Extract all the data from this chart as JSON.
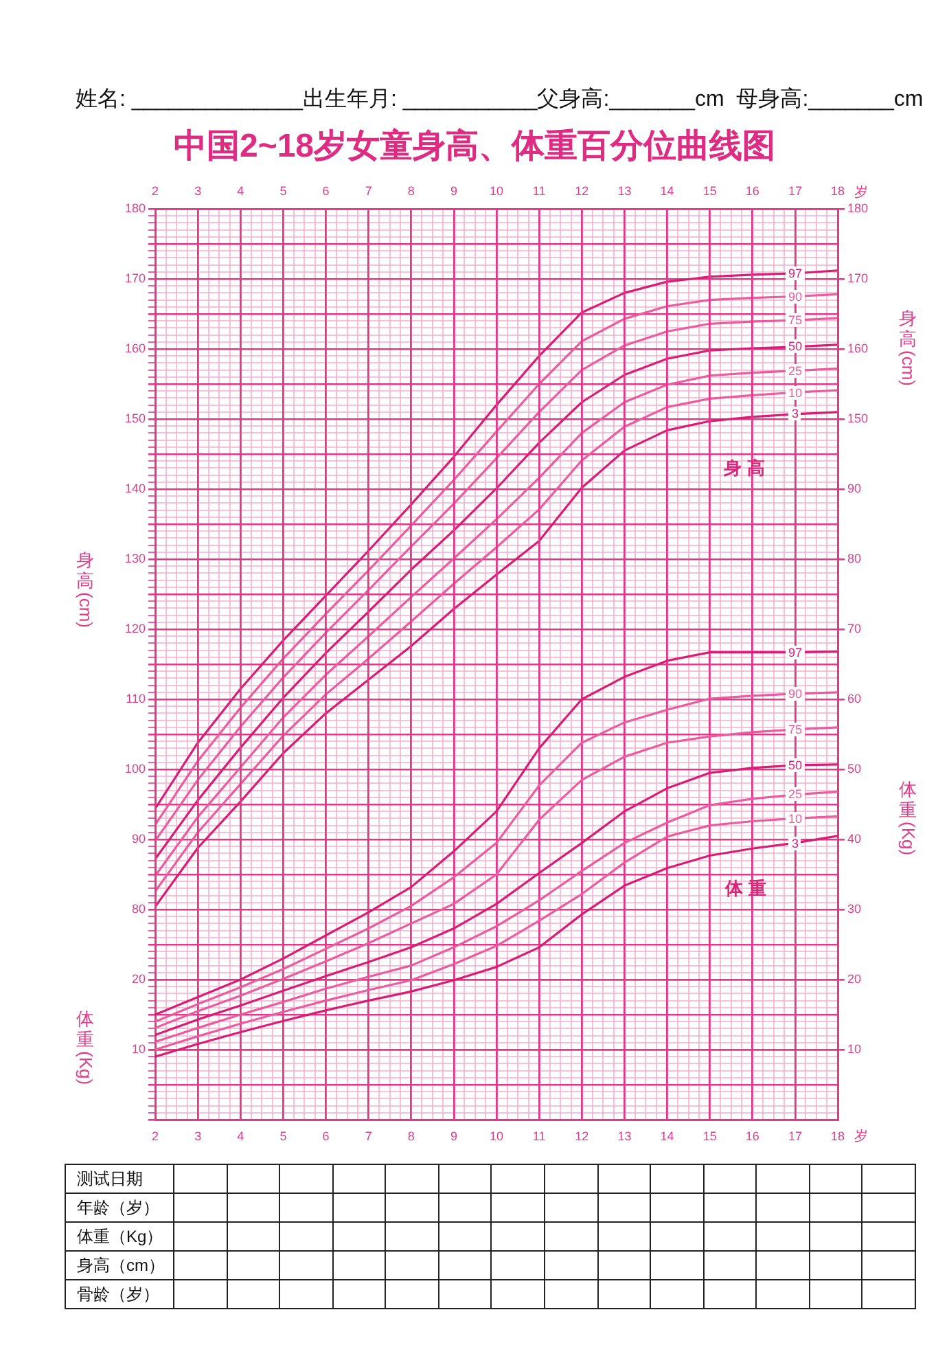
{
  "chart_data": [
    {
      "type": "line",
      "title": "中国2~18岁女童身高、体重百分位曲线图",
      "xlabel": "岁",
      "x2label": "岁",
      "ylabel": "身高(cm)",
      "y2label": "身高(cm)",
      "annotations": [
        "姓名: ______________出生年月: ___________父身高:_______cm  母身高:_______cm",
        "身高"
      ],
      "x": [
        2,
        3,
        4,
        5,
        6,
        7,
        8,
        9,
        10,
        11,
        12,
        13,
        14,
        15,
        16,
        17,
        18
      ],
      "xlim": [
        2,
        18
      ],
      "xticks": [
        2,
        {
          "value": 2.25,
          "label": null
        },
        {
          "value": 2.5,
          "label": null
        },
        {
          "value": 2.75,
          "label": null
        },
        3,
        {
          "value": 3.25,
          "label": null
        },
        {
          "value": 3.5,
          "label": null
        },
        {
          "value": 3.75,
          "label": null
        },
        4,
        {
          "value": 4.25,
          "label": null
        },
        {
          "value": 4.5,
          "label": null
        },
        {
          "value": 4.75,
          "label": null
        },
        5,
        {
          "value": 5.25,
          "label": null
        },
        {
          "value": 5.5,
          "label": null
        },
        {
          "value": 5.75,
          "label": null
        },
        6,
        {
          "value": 6.25,
          "label": null
        },
        {
          "value": 6.5,
          "label": null
        },
        {
          "value": 6.75,
          "label": null
        },
        7,
        {
          "value": 7.25,
          "label": null
        },
        {
          "value": 7.5,
          "label": null
        },
        {
          "value": 7.75,
          "label": null
        },
        8,
        {
          "value": 8.25,
          "label": null
        },
        {
          "value": 8.5,
          "label": null
        },
        {
          "value": 8.75,
          "label": null
        },
        9,
        {
          "value": 9.25,
          "label": null
        },
        {
          "value": 9.5,
          "label": null
        },
        {
          "value": 9.75,
          "label": null
        },
        10,
        {
          "value": 10.25,
          "label": null
        },
        {
          "value": 10.5,
          "label": null
        },
        {
          "value": 10.75,
          "label": null
        },
        11,
        {
          "value": 11.25,
          "label": null
        },
        {
          "value": 11.5,
          "label": null
        },
        {
          "value": 11.75,
          "label": null
        },
        12,
        {
          "value": 12.25,
          "label": null
        },
        {
          "value": 12.5,
          "label": null
        },
        {
          "value": 12.75,
          "label": null
        },
        13,
        {
          "value": 13.25,
          "label": null
        },
        {
          "value": 13.5,
          "label": null
        },
        {
          "value": 13.75,
          "label": null
        },
        14,
        {
          "value": 14.25,
          "label": null
        },
        {
          "value": 14.5,
          "label": null
        },
        {
          "value": 14.75,
          "label": null
        },
        15,
        {
          "value": 15.25,
          "label": null
        },
        {
          "value": 15.5,
          "label": null
        },
        {
          "value": 15.75,
          "label": null
        },
        16,
        {
          "value": 16.25,
          "label": null
        },
        {
          "value": 16.5,
          "label": null
        },
        {
          "value": 16.75,
          "label": null
        },
        17,
        {
          "value": 17.25,
          "label": null
        },
        {
          "value": 17.5,
          "label": null
        },
        {
          "value": 17.75,
          "label": null
        },
        18
      ],
      "x2lim": [
        2,
        18
      ],
      "x2ticks": [
        2,
        3,
        4,
        5,
        6,
        7,
        8,
        9,
        10,
        11,
        12,
        13,
        14,
        15,
        16,
        17,
        18
      ],
      "ylim": [
        50,
        180
      ],
      "yticks": [
        {
          "value": 50,
          "label": null
        },
        {
          "value": 51,
          "label": null
        },
        {
          "value": 52,
          "label": null
        },
        {
          "value": 53,
          "label": null
        },
        {
          "value": 54,
          "label": null
        },
        {
          "value": 55,
          "label": null
        },
        {
          "value": 56,
          "label": null
        },
        {
          "value": 57,
          "label": null
        },
        {
          "value": 58,
          "label": null
        },
        {
          "value": 59,
          "label": null
        },
        {
          "value": 60,
          "label": null
        },
        {
          "value": 61,
          "label": null
        },
        {
          "value": 62,
          "label": null
        },
        {
          "value": 63,
          "label": null
        },
        {
          "value": 64,
          "label": null
        },
        {
          "value": 65,
          "label": null
        },
        {
          "value": 66,
          "label": null
        },
        {
          "value": 67,
          "label": null
        },
        {
          "value": 68,
          "label": null
        },
        {
          "value": 69,
          "label": null
        },
        {
          "value": 70,
          "label": null
        },
        {
          "value": 71,
          "label": null
        },
        {
          "value": 72,
          "label": null
        },
        {
          "value": 73,
          "label": null
        },
        {
          "value": 74,
          "label": null
        },
        {
          "value": 75,
          "label": null
        },
        {
          "value": 76,
          "label": null
        },
        {
          "value": 77,
          "label": null
        },
        {
          "value": 78,
          "label": null
        },
        {
          "value": 79,
          "label": null
        },
        80,
        {
          "value": 81,
          "label": null
        },
        {
          "value": 82,
          "label": null
        },
        {
          "value": 83,
          "label": null
        },
        {
          "value": 84,
          "label": null
        },
        {
          "value": 85,
          "label": null
        },
        {
          "value": 86,
          "label": null
        },
        {
          "value": 87,
          "label": null
        },
        {
          "value": 88,
          "label": null
        },
        {
          "value": 89,
          "label": null
        },
        90,
        {
          "value": 91,
          "label": null
        },
        {
          "value": 92,
          "label": null
        },
        {
          "value": 93,
          "label": null
        },
        {
          "value": 94,
          "label": null
        },
        {
          "value": 95,
          "label": null
        },
        {
          "value": 96,
          "label": null
        },
        {
          "value": 97,
          "label": null
        },
        {
          "value": 98,
          "label": null
        },
        {
          "value": 99,
          "label": null
        },
        100,
        {
          "value": 101,
          "label": null
        },
        {
          "value": 102,
          "label": null
        },
        {
          "value": 103,
          "label": null
        },
        {
          "value": 104,
          "label": null
        },
        {
          "value": 105,
          "label": null
        },
        {
          "value": 106,
          "label": null
        },
        {
          "value": 107,
          "label": null
        },
        {
          "value": 108,
          "label": null
        },
        {
          "value": 109,
          "label": null
        },
        110,
        {
          "value": 111,
          "label": null
        },
        {
          "value": 112,
          "label": null
        },
        {
          "value": 113,
          "label": null
        },
        {
          "value": 114,
          "label": null
        },
        {
          "value": 115,
          "label": null
        },
        {
          "value": 116,
          "label": null
        },
        {
          "value": 117,
          "label": null
        },
        {
          "value": 118,
          "label": null
        },
        {
          "value": 119,
          "label": null
        },
        120,
        {
          "value": 121,
          "label": null
        },
        {
          "value": 122,
          "label": null
        },
        {
          "value": 123,
          "label": null
        },
        {
          "value": 124,
          "label": null
        },
        {
          "value": 125,
          "label": null
        },
        {
          "value": 126,
          "label": null
        },
        {
          "value": 127,
          "label": null
        },
        {
          "value": 128,
          "label": null
        },
        {
          "value": 129,
          "label": null
        },
        130,
        {
          "value": 131,
          "label": null
        },
        {
          "value": 132,
          "label": null
        },
        {
          "value": 133,
          "label": null
        },
        {
          "value": 134,
          "label": null
        },
        {
          "value": 135,
          "label": null
        },
        {
          "value": 136,
          "label": null
        },
        {
          "value": 137,
          "label": null
        },
        {
          "value": 138,
          "label": null
        },
        {
          "value": 139,
          "label": null
        },
        140,
        {
          "value": 141,
          "label": null
        },
        {
          "value": 142,
          "label": null
        },
        {
          "value": 143,
          "label": null
        },
        {
          "value": 144,
          "label": null
        },
        {
          "value": 145,
          "label": null
        },
        {
          "value": 146,
          "label": null
        },
        {
          "value": 147,
          "label": null
        },
        {
          "value": 148,
          "label": null
        },
        {
          "value": 149,
          "label": null
        },
        150,
        {
          "value": 151,
          "label": null
        },
        {
          "value": 152,
          "label": null
        },
        {
          "value": 153,
          "label": null
        },
        {
          "value": 154,
          "label": null
        },
        {
          "value": 155,
          "label": null
        },
        {
          "value": 156,
          "label": null
        },
        {
          "value": 157,
          "label": null
        },
        {
          "value": 158,
          "label": null
        },
        {
          "value": 159,
          "label": null
        },
        160,
        {
          "value": 161,
          "label": null
        },
        {
          "value": 162,
          "label": null
        },
        {
          "value": 163,
          "label": null
        },
        {
          "value": 164,
          "label": null
        },
        {
          "value": 165,
          "label": null
        },
        {
          "value": 166,
          "label": null
        },
        {
          "value": 167,
          "label": null
        },
        {
          "value": 168,
          "label": null
        },
        {
          "value": 169,
          "label": null
        },
        170,
        {
          "value": 171,
          "label": null
        },
        {
          "value": 172,
          "label": null
        },
        {
          "value": 173,
          "label": null
        },
        {
          "value": 174,
          "label": null
        },
        {
          "value": 175,
          "label": null
        },
        {
          "value": 176,
          "label": null
        },
        {
          "value": 177,
          "label": null
        },
        {
          "value": 178,
          "label": null
        },
        {
          "value": 179,
          "label": null
        },
        180
      ],
      "y2lim": [
        50,
        180
      ],
      "y2ticks": [
        150,
        160,
        170,
        180
      ],
      "grid": true,
      "marker": "none",
      "series": [
        {
          "name": "97",
          "color": "#d81e74",
          "values": [
            94.4,
            103.8,
            111.5,
            118.4,
            124.8,
            131.2,
            137.8,
            144.6,
            152.0,
            159.0,
            165.2,
            168.0,
            169.6,
            170.3,
            170.6,
            170.8,
            171.2
          ]
        },
        {
          "name": "90",
          "color": "#ea5c9e",
          "values": [
            92.1,
            101.2,
            108.8,
            115.8,
            122.2,
            128.4,
            134.8,
            141.3,
            148.2,
            155.0,
            161.1,
            164.3,
            166.1,
            167.0,
            167.3,
            167.5,
            167.8
          ]
        },
        {
          "name": "75",
          "color": "#ea5c9e",
          "values": [
            89.8,
            98.5,
            106.1,
            113.1,
            119.5,
            125.6,
            131.8,
            137.9,
            144.4,
            151.0,
            157.0,
            160.5,
            162.5,
            163.6,
            163.9,
            164.1,
            164.4
          ]
        },
        {
          "name": "50",
          "color": "#d81e74",
          "values": [
            87.2,
            95.6,
            103.1,
            110.2,
            116.6,
            122.5,
            128.5,
            134.1,
            140.1,
            146.6,
            152.4,
            156.3,
            158.6,
            159.8,
            160.1,
            160.3,
            160.6
          ]
        },
        {
          "name": "25",
          "color": "#ea5c9e",
          "values": [
            84.8,
            93.2,
            100.3,
            107.4,
            113.5,
            119.0,
            124.6,
            130.1,
            135.7,
            141.6,
            148.0,
            152.4,
            154.9,
            156.2,
            156.6,
            156.9,
            157.2
          ]
        },
        {
          "name": "10",
          "color": "#ea5c9e",
          "values": [
            82.6,
            91.0,
            97.9,
            104.8,
            110.7,
            115.8,
            121.1,
            126.5,
            131.7,
            137.1,
            144.1,
            148.9,
            151.7,
            152.9,
            153.4,
            153.8,
            154.1
          ]
        },
        {
          "name": "3",
          "color": "#d81e74",
          "values": [
            80.4,
            88.8,
            95.4,
            102.3,
            108.0,
            112.8,
            117.6,
            122.9,
            127.8,
            132.6,
            140.2,
            145.5,
            148.4,
            149.7,
            150.3,
            150.7,
            151.0
          ]
        }
      ]
    },
    {
      "type": "line",
      "ylabel": "体重(Kg)",
      "y2label": "体重(Kg)",
      "annotations": [
        "体重",
        "测试日期",
        "年龄（岁）",
        "体重（Kg）",
        "身高（cm）",
        "骨龄（岁）"
      ],
      "x": [
        2,
        3,
        4,
        5,
        6,
        7,
        8,
        9,
        10,
        11,
        12,
        13,
        14,
        15,
        16,
        17,
        18
      ],
      "xlim": [
        2,
        18
      ],
      "xticks": [
        2,
        3,
        4,
        5,
        6,
        7,
        8,
        9,
        10,
        11,
        12,
        13,
        14,
        15,
        16,
        17,
        18
      ],
      "ylim": [
        0,
        130
      ],
      "yticks": [
        10,
        20
      ],
      "y2lim": [
        0,
        130
      ],
      "y2ticks": [
        10,
        20,
        30,
        40,
        50,
        60,
        70,
        80,
        90
      ],
      "tick_labels": "y",
      "grid": true,
      "marker": "none",
      "series": [
        {
          "name": "97",
          "color": "#d81e74",
          "values": [
            15.0,
            17.5,
            20.0,
            23.0,
            26.3,
            29.6,
            33.2,
            38.3,
            44.0,
            53.0,
            60.0,
            63.2,
            65.5,
            66.7,
            66.7,
            66.7,
            66.8
          ]
        },
        {
          "name": "90",
          "color": "#ea5c9e",
          "values": [
            14.0,
            16.5,
            18.9,
            21.5,
            24.4,
            27.3,
            30.5,
            34.6,
            39.5,
            47.7,
            53.8,
            56.7,
            58.5,
            60.1,
            60.5,
            60.8,
            61.0
          ]
        },
        {
          "name": "75",
          "color": "#ea5c9e",
          "values": [
            13.1,
            15.5,
            17.7,
            20.1,
            22.6,
            25.2,
            28.0,
            30.8,
            35.0,
            42.8,
            48.5,
            51.8,
            53.8,
            54.7,
            55.3,
            55.7,
            56.0
          ]
        },
        {
          "name": "50",
          "color": "#d81e74",
          "values": [
            12.1,
            14.3,
            16.3,
            18.4,
            20.5,
            22.5,
            24.6,
            27.3,
            30.8,
            35.2,
            39.5,
            44.0,
            47.3,
            49.5,
            50.2,
            50.6,
            50.7
          ]
        },
        {
          "name": "25",
          "color": "#ea5c9e",
          "values": [
            11.1,
            13.1,
            15.0,
            16.8,
            18.7,
            20.4,
            22.0,
            24.6,
            27.6,
            31.3,
            35.5,
            39.5,
            42.4,
            44.9,
            45.8,
            46.4,
            46.8
          ]
        },
        {
          "name": "10",
          "color": "#ea5c9e",
          "values": [
            10.0,
            11.9,
            13.7,
            15.4,
            17.0,
            18.5,
            19.9,
            22.2,
            24.8,
            28.4,
            32.2,
            36.7,
            40.4,
            42.0,
            42.6,
            43.0,
            43.3
          ]
        },
        {
          "name": "3",
          "color": "#d81e74",
          "values": [
            9.0,
            10.8,
            12.5,
            14.1,
            15.6,
            17.0,
            18.3,
            19.9,
            21.8,
            24.6,
            29.3,
            33.4,
            35.9,
            37.7,
            38.7,
            39.5,
            40.5
          ]
        }
      ]
    }
  ]
}
